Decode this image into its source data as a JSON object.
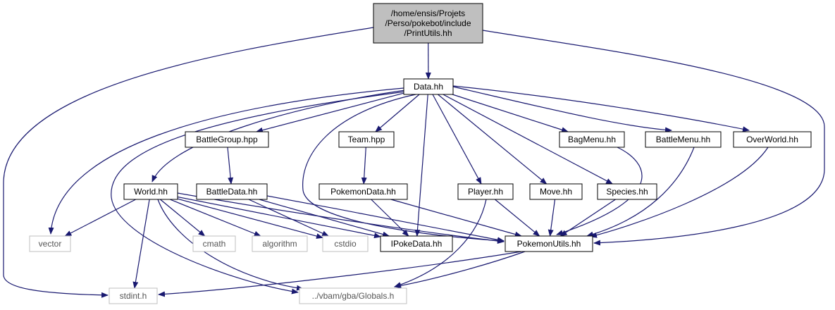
{
  "colors": {
    "edge": "#191970",
    "node_border": "#000000",
    "system_border": "#bfbfbf",
    "root_fill": "#bfbfbf",
    "node_fill": "#ffffff"
  },
  "nodes": [
    {
      "id": "printutils",
      "lines": [
        "/home/ensis/Projets",
        "/Perso/pokebot/include",
        "/PrintUtils.hh"
      ],
      "kind": "root"
    },
    {
      "id": "data",
      "lines": [
        "Data.hh"
      ],
      "kind": "normal"
    },
    {
      "id": "battlegroup",
      "lines": [
        "BattleGroup.hpp"
      ],
      "kind": "normal"
    },
    {
      "id": "team",
      "lines": [
        "Team.hpp"
      ],
      "kind": "normal"
    },
    {
      "id": "bagmenu",
      "lines": [
        "BagMenu.hh"
      ],
      "kind": "normal"
    },
    {
      "id": "battlemenu",
      "lines": [
        "BattleMenu.hh"
      ],
      "kind": "normal"
    },
    {
      "id": "overworld",
      "lines": [
        "OverWorld.hh"
      ],
      "kind": "normal"
    },
    {
      "id": "world",
      "lines": [
        "World.hh"
      ],
      "kind": "normal"
    },
    {
      "id": "battledata",
      "lines": [
        "BattleData.hh"
      ],
      "kind": "normal"
    },
    {
      "id": "pokemondata",
      "lines": [
        "PokemonData.hh"
      ],
      "kind": "normal"
    },
    {
      "id": "player",
      "lines": [
        "Player.hh"
      ],
      "kind": "normal"
    },
    {
      "id": "move",
      "lines": [
        "Move.hh"
      ],
      "kind": "normal"
    },
    {
      "id": "species",
      "lines": [
        "Species.hh"
      ],
      "kind": "normal"
    },
    {
      "id": "vector",
      "lines": [
        "vector"
      ],
      "kind": "system"
    },
    {
      "id": "cmath",
      "lines": [
        "cmath"
      ],
      "kind": "system"
    },
    {
      "id": "algorithm",
      "lines": [
        "algorithm"
      ],
      "kind": "system"
    },
    {
      "id": "cstdio",
      "lines": [
        "cstdio"
      ],
      "kind": "system"
    },
    {
      "id": "ipokedata",
      "lines": [
        "IPokeData.hh"
      ],
      "kind": "normal"
    },
    {
      "id": "pokemonutils",
      "lines": [
        "PokemonUtils.hh"
      ],
      "kind": "normal"
    },
    {
      "id": "stdint",
      "lines": [
        "stdint.h"
      ],
      "kind": "system"
    },
    {
      "id": "globals",
      "lines": [
        "../vbam/gba/Globals.h"
      ],
      "kind": "system"
    }
  ],
  "edges": [
    [
      "printutils",
      "data"
    ],
    [
      "printutils",
      "stdint"
    ],
    [
      "printutils",
      "pokemonutils"
    ],
    [
      "data",
      "vector"
    ],
    [
      "data",
      "world"
    ],
    [
      "data",
      "globals"
    ],
    [
      "data",
      "battlegroup"
    ],
    [
      "data",
      "team"
    ],
    [
      "data",
      "ipokedata"
    ],
    [
      "data",
      "pokemonutils"
    ],
    [
      "data",
      "player"
    ],
    [
      "data",
      "move"
    ],
    [
      "data",
      "species"
    ],
    [
      "data",
      "bagmenu"
    ],
    [
      "data",
      "battlemenu"
    ],
    [
      "data",
      "overworld"
    ],
    [
      "battlegroup",
      "battledata"
    ],
    [
      "team",
      "pokemondata"
    ],
    [
      "world",
      "vector"
    ],
    [
      "world",
      "stdint"
    ],
    [
      "world",
      "globals"
    ],
    [
      "world",
      "cmath"
    ],
    [
      "world",
      "algorithm"
    ],
    [
      "world",
      "cstdio"
    ],
    [
      "world",
      "ipokedata"
    ],
    [
      "world",
      "pokemonutils"
    ],
    [
      "battledata",
      "cstdio"
    ],
    [
      "battledata",
      "ipokedata"
    ],
    [
      "battledata",
      "pokemonutils"
    ],
    [
      "pokemondata",
      "ipokedata"
    ],
    [
      "pokemondata",
      "pokemonutils"
    ],
    [
      "player",
      "pokemonutils"
    ],
    [
      "player",
      "globals"
    ],
    [
      "move",
      "pokemonutils"
    ],
    [
      "species",
      "pokemonutils"
    ],
    [
      "bagmenu",
      "pokemonutils"
    ],
    [
      "battlemenu",
      "pokemonutils"
    ],
    [
      "overworld",
      "pokemonutils"
    ],
    [
      "pokemonutils",
      "stdint"
    ],
    [
      "pokemonutils",
      "globals"
    ]
  ]
}
